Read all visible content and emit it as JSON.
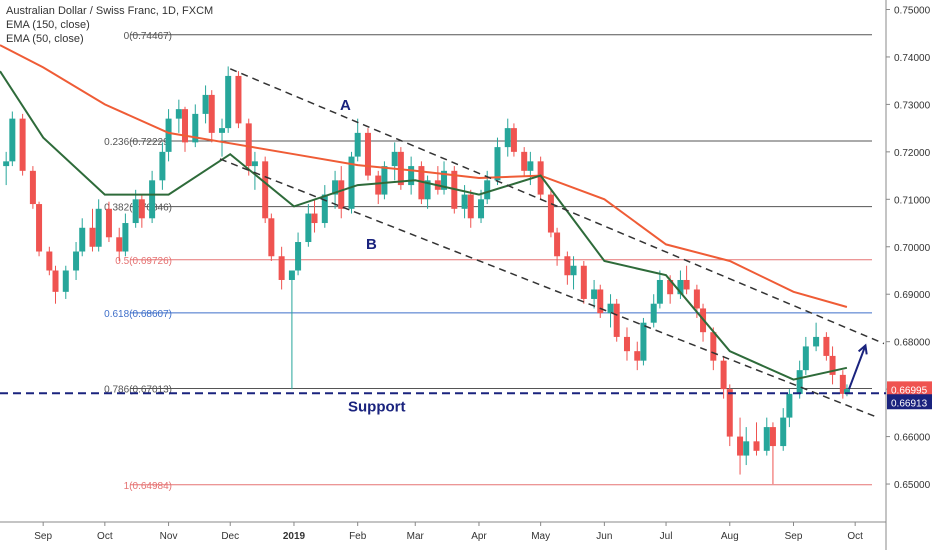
{
  "chart_data": {
    "type": "candlestick",
    "title": "Australian Dollar / Swiss Franc, 1D, FXCM",
    "indicators": [
      "EMA (150, close)",
      "EMA (50, close)"
    ],
    "x_labels": [
      "Sep",
      "Oct",
      "Nov",
      "Dec",
      "2019",
      "Feb",
      "Mar",
      "Apr",
      "May",
      "Jun",
      "Jul",
      "Aug",
      "Sep",
      "Oct"
    ],
    "x_label_dates": [
      "2018-09-01",
      "2018-10-01",
      "2018-11-01",
      "2018-12-01",
      "2019-01-01",
      "2019-02-01",
      "2019-03-01",
      "2019-04-01",
      "2019-05-01",
      "2019-06-01",
      "2019-07-01",
      "2019-08-01",
      "2019-09-01",
      "2019-10-01"
    ],
    "x_range": [
      "2018-08-11",
      "2019-10-16"
    ],
    "y_ticks": [
      "0.75000",
      "0.74000",
      "0.73000",
      "0.72000",
      "0.71000",
      "0.70000",
      "0.69000",
      "0.68000",
      "0.67000",
      "0.66000",
      "0.65000"
    ],
    "y_range": [
      0.642,
      0.752
    ],
    "price_labels": [
      {
        "text": "0.66995",
        "value": 0.66995,
        "bg": "#ef5350"
      },
      {
        "text": "0.66913",
        "value": 0.66913,
        "bg": "#1a237e"
      }
    ],
    "fib_levels": [
      {
        "label": "0(0.74467)",
        "value": 0.74467,
        "color": "#555555"
      },
      {
        "label": "0.236(0.72229)",
        "value": 0.72229,
        "color": "#555555"
      },
      {
        "label": "0.382(0.70846)",
        "value": 0.70846,
        "color": "#555555"
      },
      {
        "label": "0.5(0.69726)",
        "value": 0.69726,
        "color": "#e57373"
      },
      {
        "label": "0.618(0.68607)",
        "value": 0.68607,
        "color": "#3f6fc9"
      },
      {
        "label": "0.786(0.67013)",
        "value": 0.67013,
        "color": "#555555"
      },
      {
        "label": "1(0.64984)",
        "value": 0.64984,
        "color": "#e57373"
      }
    ],
    "annotations": {
      "channel_label_a": "A",
      "channel_label_b": "B",
      "support_label": "Support",
      "support_level": 0.66913
    },
    "channel_lines": [
      {
        "start": [
          "2018-12-01",
          0.7375
        ],
        "end": [
          "2019-10-15",
          0.6796
        ]
      },
      {
        "start": [
          "2018-11-26",
          0.7185
        ],
        "end": [
          "2019-10-11",
          0.6642
        ]
      }
    ],
    "breakout_arrow": {
      "start": [
        "2019-09-28",
        0.67
      ],
      "end": [
        "2019-10-06",
        0.6792
      ]
    },
    "ema150": [
      [
        "2018-08-11",
        0.7425
      ],
      [
        "2018-09-01",
        0.7378
      ],
      [
        "2018-10-01",
        0.73
      ],
      [
        "2018-11-01",
        0.724
      ],
      [
        "2018-12-01",
        0.7218
      ],
      [
        "2019-01-01",
        0.7195
      ],
      [
        "2019-02-01",
        0.7172
      ],
      [
        "2019-03-01",
        0.716
      ],
      [
        "2019-04-01",
        0.7145
      ],
      [
        "2019-05-01",
        0.715
      ],
      [
        "2019-06-01",
        0.71
      ],
      [
        "2019-07-01",
        0.7005
      ],
      [
        "2019-08-01",
        0.697
      ],
      [
        "2019-09-01",
        0.6905
      ],
      [
        "2019-09-27",
        0.6873
      ]
    ],
    "ema50": [
      [
        "2018-08-11",
        0.737
      ],
      [
        "2018-09-01",
        0.723
      ],
      [
        "2018-10-01",
        0.711
      ],
      [
        "2018-11-01",
        0.711
      ],
      [
        "2018-12-01",
        0.7195
      ],
      [
        "2019-01-01",
        0.7085
      ],
      [
        "2019-02-01",
        0.713
      ],
      [
        "2019-03-01",
        0.714
      ],
      [
        "2019-04-01",
        0.711
      ],
      [
        "2019-05-01",
        0.715
      ],
      [
        "2019-06-01",
        0.697
      ],
      [
        "2019-07-01",
        0.694
      ],
      [
        "2019-08-01",
        0.678
      ],
      [
        "2019-09-01",
        0.672
      ],
      [
        "2019-09-27",
        0.6745
      ]
    ],
    "colors": {
      "up": "#26a69a",
      "down": "#ef5350",
      "ema150": "#ef5c36",
      "ema50": "#2e6b3a",
      "support": "#1a237e",
      "dashed": "#333333"
    },
    "ohlc_daily": [
      [
        "2018-08-14",
        0.717,
        0.72,
        0.713,
        0.718
      ],
      [
        "2018-08-17",
        0.718,
        0.7285,
        0.717,
        0.727
      ],
      [
        "2018-08-22",
        0.727,
        0.728,
        0.715,
        0.716
      ],
      [
        "2018-08-27",
        0.716,
        0.717,
        0.708,
        0.709
      ],
      [
        "2018-08-30",
        0.709,
        0.7095,
        0.698,
        0.699
      ],
      [
        "2018-09-04",
        0.699,
        0.7,
        0.694,
        0.695
      ],
      [
        "2018-09-07",
        0.695,
        0.696,
        0.688,
        0.6905
      ],
      [
        "2018-09-12",
        0.6905,
        0.696,
        0.689,
        0.695
      ],
      [
        "2018-09-17",
        0.695,
        0.701,
        0.693,
        0.699
      ],
      [
        "2018-09-20",
        0.699,
        0.706,
        0.698,
        0.704
      ],
      [
        "2018-09-25",
        0.704,
        0.708,
        0.699,
        0.7
      ],
      [
        "2018-09-28",
        0.7,
        0.71,
        0.699,
        0.708
      ],
      [
        "2018-10-03",
        0.708,
        0.7095,
        0.701,
        0.702
      ],
      [
        "2018-10-08",
        0.702,
        0.704,
        0.697,
        0.699
      ],
      [
        "2018-10-11",
        0.699,
        0.707,
        0.698,
        0.705
      ],
      [
        "2018-10-16",
        0.705,
        0.712,
        0.704,
        0.71
      ],
      [
        "2018-10-19",
        0.71,
        0.711,
        0.704,
        0.706
      ],
      [
        "2018-10-24",
        0.706,
        0.716,
        0.705,
        0.714
      ],
      [
        "2018-10-29",
        0.714,
        0.722,
        0.712,
        0.72
      ],
      [
        "2018-11-01",
        0.72,
        0.729,
        0.718,
        0.727
      ],
      [
        "2018-11-06",
        0.727,
        0.731,
        0.724,
        0.729
      ],
      [
        "2018-11-09",
        0.729,
        0.7295,
        0.72,
        0.722
      ],
      [
        "2018-11-14",
        0.722,
        0.73,
        0.721,
        0.728
      ],
      [
        "2018-11-19",
        0.728,
        0.734,
        0.726,
        0.732
      ],
      [
        "2018-11-22",
        0.732,
        0.733,
        0.722,
        0.724
      ],
      [
        "2018-11-27",
        0.724,
        0.727,
        0.719,
        0.725
      ],
      [
        "2018-11-30",
        0.725,
        0.738,
        0.724,
        0.736
      ],
      [
        "2018-12-05",
        0.736,
        0.737,
        0.725,
        0.726
      ],
      [
        "2018-12-10",
        0.726,
        0.727,
        0.715,
        0.717
      ],
      [
        "2018-12-13",
        0.717,
        0.72,
        0.712,
        0.718
      ],
      [
        "2018-12-18",
        0.718,
        0.719,
        0.705,
        0.706
      ],
      [
        "2018-12-21",
        0.706,
        0.707,
        0.697,
        0.698
      ],
      [
        "2018-12-26",
        0.698,
        0.7,
        0.691,
        0.693
      ],
      [
        "2018-12-31",
        0.693,
        0.695,
        0.67,
        0.695
      ],
      [
        "2019-01-03",
        0.695,
        0.703,
        0.694,
        0.701
      ],
      [
        "2019-01-08",
        0.701,
        0.709,
        0.7,
        0.707
      ],
      [
        "2019-01-11",
        0.707,
        0.71,
        0.703,
        0.705
      ],
      [
        "2019-01-16",
        0.705,
        0.713,
        0.704,
        0.711
      ],
      [
        "2019-01-21",
        0.711,
        0.716,
        0.708,
        0.714
      ],
      [
        "2019-01-24",
        0.714,
        0.717,
        0.706,
        0.708
      ],
      [
        "2019-01-29",
        0.708,
        0.72,
        0.707,
        0.719
      ],
      [
        "2019-02-01",
        0.719,
        0.727,
        0.718,
        0.724
      ],
      [
        "2019-02-06",
        0.724,
        0.725,
        0.714,
        0.715
      ],
      [
        "2019-02-11",
        0.715,
        0.716,
        0.709,
        0.711
      ],
      [
        "2019-02-14",
        0.711,
        0.718,
        0.71,
        0.717
      ],
      [
        "2019-02-19",
        0.717,
        0.722,
        0.714,
        0.72
      ],
      [
        "2019-02-22",
        0.72,
        0.721,
        0.712,
        0.713
      ],
      [
        "2019-02-27",
        0.713,
        0.719,
        0.711,
        0.717
      ],
      [
        "2019-03-04",
        0.717,
        0.718,
        0.709,
        0.71
      ],
      [
        "2019-03-07",
        0.71,
        0.715,
        0.708,
        0.714
      ],
      [
        "2019-03-12",
        0.714,
        0.717,
        0.711,
        0.712
      ],
      [
        "2019-03-15",
        0.712,
        0.718,
        0.711,
        0.716
      ],
      [
        "2019-03-20",
        0.716,
        0.717,
        0.707,
        0.708
      ],
      [
        "2019-03-25",
        0.708,
        0.713,
        0.706,
        0.711
      ],
      [
        "2019-03-28",
        0.711,
        0.712,
        0.704,
        0.706
      ],
      [
        "2019-04-02",
        0.706,
        0.712,
        0.705,
        0.71
      ],
      [
        "2019-04-05",
        0.71,
        0.716,
        0.709,
        0.714
      ],
      [
        "2019-04-10",
        0.714,
        0.723,
        0.713,
        0.721
      ],
      [
        "2019-04-15",
        0.721,
        0.727,
        0.719,
        0.725
      ],
      [
        "2019-04-18",
        0.725,
        0.726,
        0.719,
        0.72
      ],
      [
        "2019-04-23",
        0.72,
        0.721,
        0.715,
        0.716
      ],
      [
        "2019-04-26",
        0.716,
        0.72,
        0.713,
        0.718
      ],
      [
        "2019-05-01",
        0.718,
        0.719,
        0.71,
        0.711
      ],
      [
        "2019-05-06",
        0.711,
        0.712,
        0.702,
        0.703
      ],
      [
        "2019-05-09",
        0.703,
        0.704,
        0.696,
        0.698
      ],
      [
        "2019-05-14",
        0.698,
        0.699,
        0.692,
        0.694
      ],
      [
        "2019-05-17",
        0.694,
        0.698,
        0.691,
        0.696
      ],
      [
        "2019-05-22",
        0.696,
        0.697,
        0.688,
        0.689
      ],
      [
        "2019-05-27",
        0.689,
        0.693,
        0.687,
        0.691
      ],
      [
        "2019-05-30",
        0.691,
        0.692,
        0.685,
        0.686
      ],
      [
        "2019-06-04",
        0.686,
        0.69,
        0.683,
        0.688
      ],
      [
        "2019-06-07",
        0.688,
        0.689,
        0.68,
        0.681
      ],
      [
        "2019-06-12",
        0.681,
        0.683,
        0.676,
        0.678
      ],
      [
        "2019-06-17",
        0.678,
        0.68,
        0.674,
        0.676
      ],
      [
        "2019-06-20",
        0.676,
        0.685,
        0.675,
        0.684
      ],
      [
        "2019-06-25",
        0.684,
        0.69,
        0.683,
        0.688
      ],
      [
        "2019-06-28",
        0.688,
        0.695,
        0.687,
        0.693
      ],
      [
        "2019-07-03",
        0.693,
        0.694,
        0.688,
        0.69
      ],
      [
        "2019-07-08",
        0.69,
        0.695,
        0.689,
        0.693
      ],
      [
        "2019-07-11",
        0.693,
        0.696,
        0.69,
        0.691
      ],
      [
        "2019-07-16",
        0.691,
        0.692,
        0.685,
        0.687
      ],
      [
        "2019-07-19",
        0.687,
        0.688,
        0.68,
        0.682
      ],
      [
        "2019-07-24",
        0.682,
        0.683,
        0.674,
        0.676
      ],
      [
        "2019-07-29",
        0.676,
        0.677,
        0.668,
        0.67
      ],
      [
        "2019-08-01",
        0.67,
        0.671,
        0.658,
        0.66
      ],
      [
        "2019-08-06",
        0.66,
        0.664,
        0.652,
        0.656
      ],
      [
        "2019-08-09",
        0.656,
        0.662,
        0.654,
        0.659
      ],
      [
        "2019-08-14",
        0.659,
        0.663,
        0.656,
        0.657
      ],
      [
        "2019-08-19",
        0.657,
        0.664,
        0.656,
        0.662
      ],
      [
        "2019-08-22",
        0.662,
        0.663,
        0.65,
        0.658
      ],
      [
        "2019-08-27",
        0.658,
        0.666,
        0.657,
        0.664
      ],
      [
        "2019-08-30",
        0.664,
        0.67,
        0.662,
        0.669
      ],
      [
        "2019-09-04",
        0.669,
        0.676,
        0.668,
        0.674
      ],
      [
        "2019-09-07",
        0.674,
        0.681,
        0.673,
        0.679
      ],
      [
        "2019-09-12",
        0.679,
        0.684,
        0.678,
        0.681
      ],
      [
        "2019-09-17",
        0.681,
        0.682,
        0.676,
        0.677
      ],
      [
        "2019-09-20",
        0.677,
        0.679,
        0.671,
        0.673
      ],
      [
        "2019-09-25",
        0.673,
        0.674,
        0.668,
        0.669
      ],
      [
        "2019-09-27",
        0.669,
        0.671,
        0.6685,
        0.67
      ]
    ]
  }
}
